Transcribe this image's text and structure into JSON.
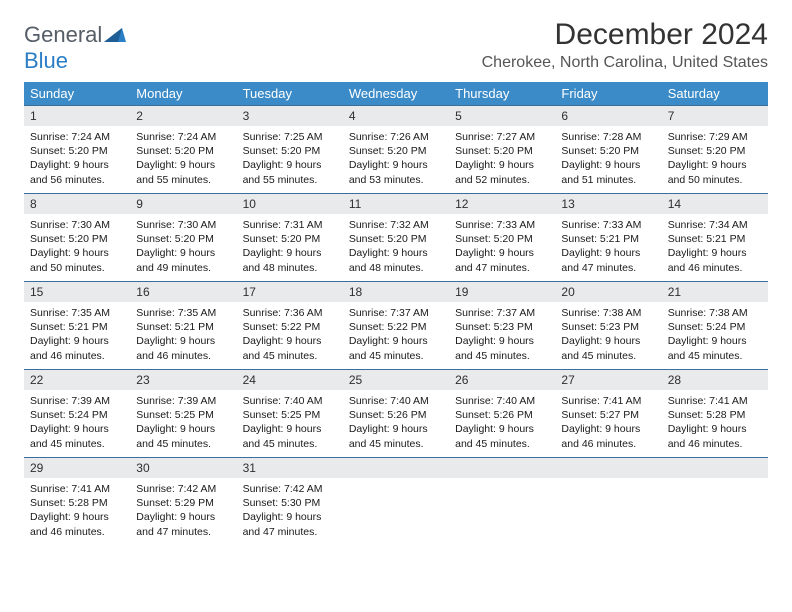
{
  "brand": {
    "part1": "General",
    "part2": "Blue"
  },
  "title": "December 2024",
  "location": "Cherokee, North Carolina, United States",
  "colors": {
    "header_bg": "#3b8bc8",
    "header_text": "#ffffff",
    "daynum_bg": "#e9eaec",
    "rule": "#3b6f9a",
    "brand_gray": "#555d66",
    "brand_blue": "#2a7ec5"
  },
  "weekdays": [
    "Sunday",
    "Monday",
    "Tuesday",
    "Wednesday",
    "Thursday",
    "Friday",
    "Saturday"
  ],
  "weeks": [
    [
      {
        "n": "1",
        "sr": "Sunrise: 7:24 AM",
        "ss": "Sunset: 5:20 PM",
        "d1": "Daylight: 9 hours",
        "d2": "and 56 minutes."
      },
      {
        "n": "2",
        "sr": "Sunrise: 7:24 AM",
        "ss": "Sunset: 5:20 PM",
        "d1": "Daylight: 9 hours",
        "d2": "and 55 minutes."
      },
      {
        "n": "3",
        "sr": "Sunrise: 7:25 AM",
        "ss": "Sunset: 5:20 PM",
        "d1": "Daylight: 9 hours",
        "d2": "and 55 minutes."
      },
      {
        "n": "4",
        "sr": "Sunrise: 7:26 AM",
        "ss": "Sunset: 5:20 PM",
        "d1": "Daylight: 9 hours",
        "d2": "and 53 minutes."
      },
      {
        "n": "5",
        "sr": "Sunrise: 7:27 AM",
        "ss": "Sunset: 5:20 PM",
        "d1": "Daylight: 9 hours",
        "d2": "and 52 minutes."
      },
      {
        "n": "6",
        "sr": "Sunrise: 7:28 AM",
        "ss": "Sunset: 5:20 PM",
        "d1": "Daylight: 9 hours",
        "d2": "and 51 minutes."
      },
      {
        "n": "7",
        "sr": "Sunrise: 7:29 AM",
        "ss": "Sunset: 5:20 PM",
        "d1": "Daylight: 9 hours",
        "d2": "and 50 minutes."
      }
    ],
    [
      {
        "n": "8",
        "sr": "Sunrise: 7:30 AM",
        "ss": "Sunset: 5:20 PM",
        "d1": "Daylight: 9 hours",
        "d2": "and 50 minutes."
      },
      {
        "n": "9",
        "sr": "Sunrise: 7:30 AM",
        "ss": "Sunset: 5:20 PM",
        "d1": "Daylight: 9 hours",
        "d2": "and 49 minutes."
      },
      {
        "n": "10",
        "sr": "Sunrise: 7:31 AM",
        "ss": "Sunset: 5:20 PM",
        "d1": "Daylight: 9 hours",
        "d2": "and 48 minutes."
      },
      {
        "n": "11",
        "sr": "Sunrise: 7:32 AM",
        "ss": "Sunset: 5:20 PM",
        "d1": "Daylight: 9 hours",
        "d2": "and 48 minutes."
      },
      {
        "n": "12",
        "sr": "Sunrise: 7:33 AM",
        "ss": "Sunset: 5:20 PM",
        "d1": "Daylight: 9 hours",
        "d2": "and 47 minutes."
      },
      {
        "n": "13",
        "sr": "Sunrise: 7:33 AM",
        "ss": "Sunset: 5:21 PM",
        "d1": "Daylight: 9 hours",
        "d2": "and 47 minutes."
      },
      {
        "n": "14",
        "sr": "Sunrise: 7:34 AM",
        "ss": "Sunset: 5:21 PM",
        "d1": "Daylight: 9 hours",
        "d2": "and 46 minutes."
      }
    ],
    [
      {
        "n": "15",
        "sr": "Sunrise: 7:35 AM",
        "ss": "Sunset: 5:21 PM",
        "d1": "Daylight: 9 hours",
        "d2": "and 46 minutes."
      },
      {
        "n": "16",
        "sr": "Sunrise: 7:35 AM",
        "ss": "Sunset: 5:21 PM",
        "d1": "Daylight: 9 hours",
        "d2": "and 46 minutes."
      },
      {
        "n": "17",
        "sr": "Sunrise: 7:36 AM",
        "ss": "Sunset: 5:22 PM",
        "d1": "Daylight: 9 hours",
        "d2": "and 45 minutes."
      },
      {
        "n": "18",
        "sr": "Sunrise: 7:37 AM",
        "ss": "Sunset: 5:22 PM",
        "d1": "Daylight: 9 hours",
        "d2": "and 45 minutes."
      },
      {
        "n": "19",
        "sr": "Sunrise: 7:37 AM",
        "ss": "Sunset: 5:23 PM",
        "d1": "Daylight: 9 hours",
        "d2": "and 45 minutes."
      },
      {
        "n": "20",
        "sr": "Sunrise: 7:38 AM",
        "ss": "Sunset: 5:23 PM",
        "d1": "Daylight: 9 hours",
        "d2": "and 45 minutes."
      },
      {
        "n": "21",
        "sr": "Sunrise: 7:38 AM",
        "ss": "Sunset: 5:24 PM",
        "d1": "Daylight: 9 hours",
        "d2": "and 45 minutes."
      }
    ],
    [
      {
        "n": "22",
        "sr": "Sunrise: 7:39 AM",
        "ss": "Sunset: 5:24 PM",
        "d1": "Daylight: 9 hours",
        "d2": "and 45 minutes."
      },
      {
        "n": "23",
        "sr": "Sunrise: 7:39 AM",
        "ss": "Sunset: 5:25 PM",
        "d1": "Daylight: 9 hours",
        "d2": "and 45 minutes."
      },
      {
        "n": "24",
        "sr": "Sunrise: 7:40 AM",
        "ss": "Sunset: 5:25 PM",
        "d1": "Daylight: 9 hours",
        "d2": "and 45 minutes."
      },
      {
        "n": "25",
        "sr": "Sunrise: 7:40 AM",
        "ss": "Sunset: 5:26 PM",
        "d1": "Daylight: 9 hours",
        "d2": "and 45 minutes."
      },
      {
        "n": "26",
        "sr": "Sunrise: 7:40 AM",
        "ss": "Sunset: 5:26 PM",
        "d1": "Daylight: 9 hours",
        "d2": "and 45 minutes."
      },
      {
        "n": "27",
        "sr": "Sunrise: 7:41 AM",
        "ss": "Sunset: 5:27 PM",
        "d1": "Daylight: 9 hours",
        "d2": "and 46 minutes."
      },
      {
        "n": "28",
        "sr": "Sunrise: 7:41 AM",
        "ss": "Sunset: 5:28 PM",
        "d1": "Daylight: 9 hours",
        "d2": "and 46 minutes."
      }
    ],
    [
      {
        "n": "29",
        "sr": "Sunrise: 7:41 AM",
        "ss": "Sunset: 5:28 PM",
        "d1": "Daylight: 9 hours",
        "d2": "and 46 minutes."
      },
      {
        "n": "30",
        "sr": "Sunrise: 7:42 AM",
        "ss": "Sunset: 5:29 PM",
        "d1": "Daylight: 9 hours",
        "d2": "and 47 minutes."
      },
      {
        "n": "31",
        "sr": "Sunrise: 7:42 AM",
        "ss": "Sunset: 5:30 PM",
        "d1": "Daylight: 9 hours",
        "d2": "and 47 minutes."
      },
      {
        "empty": true,
        "n": "",
        "sr": "",
        "ss": "",
        "d1": "",
        "d2": ""
      },
      {
        "empty": true,
        "n": "",
        "sr": "",
        "ss": "",
        "d1": "",
        "d2": ""
      },
      {
        "empty": true,
        "n": "",
        "sr": "",
        "ss": "",
        "d1": "",
        "d2": ""
      },
      {
        "empty": true,
        "n": "",
        "sr": "",
        "ss": "",
        "d1": "",
        "d2": ""
      }
    ]
  ]
}
